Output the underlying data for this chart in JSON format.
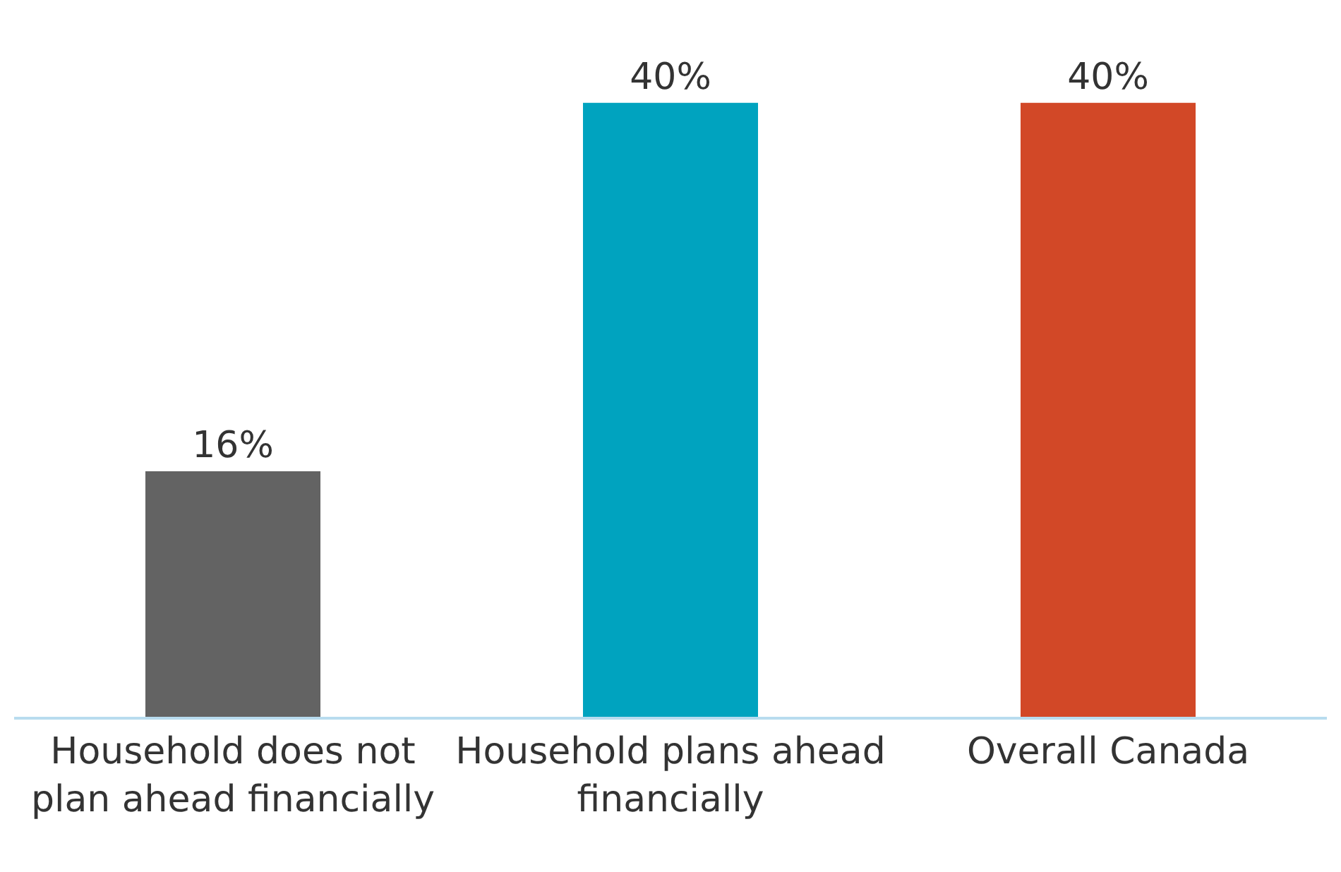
{
  "chart_data": {
    "type": "bar",
    "categories": [
      "Household does not plan ahead financially",
      "Household plans ahead financially",
      "Overall Canada"
    ],
    "values": [
      16,
      40,
      40
    ],
    "colors": [
      "#636363",
      "#00a3bf",
      "#d24827"
    ],
    "value_labels": [
      "16%",
      "40%",
      "40%"
    ]
  }
}
